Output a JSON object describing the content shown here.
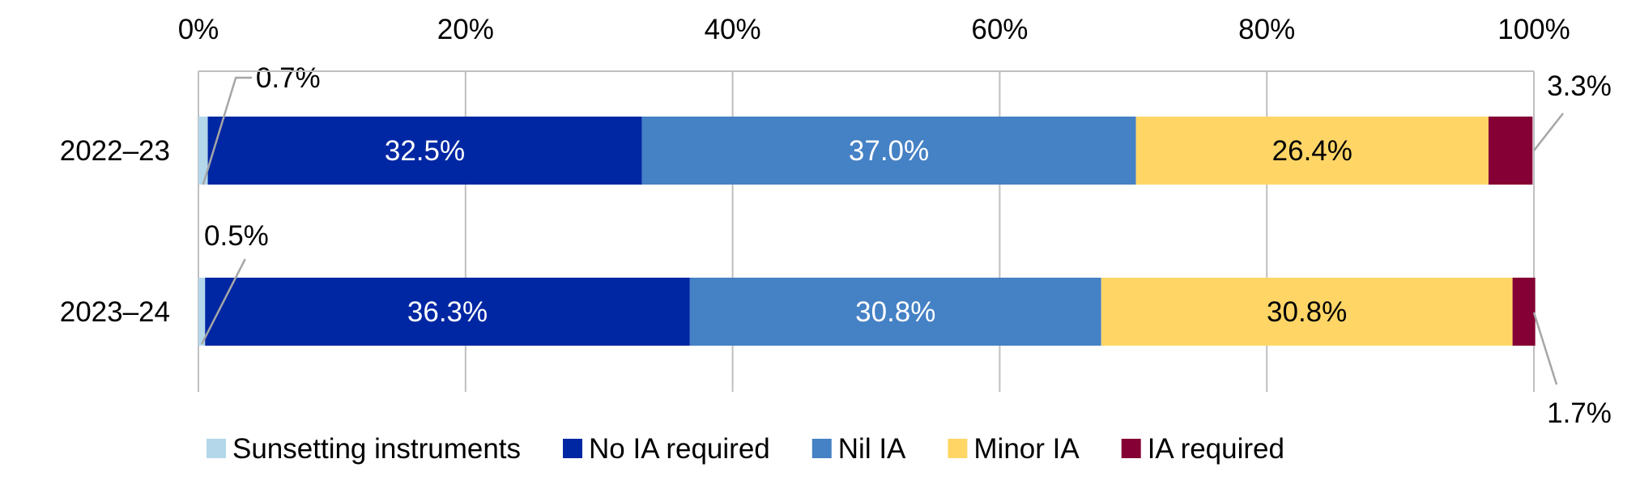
{
  "chart_data": {
    "type": "bar",
    "orientation": "horizontal",
    "stacked": true,
    "categories": [
      "2022–23",
      "2023–24"
    ],
    "series": [
      {
        "name": "Sunsetting instruments",
        "color": "#B4D7EA",
        "values": [
          0.7,
          0.5
        ],
        "labels": [
          "0.7%",
          "0.5%"
        ]
      },
      {
        "name": "No IA required",
        "color": "#0027A3",
        "values": [
          32.5,
          36.3
        ],
        "labels": [
          "32.5%",
          "36.3%"
        ]
      },
      {
        "name": "Nil IA",
        "color": "#4581C5",
        "values": [
          37.0,
          30.8
        ],
        "labels": [
          "37.0%",
          "30.8%"
        ]
      },
      {
        "name": "Minor IA",
        "color": "#FFD666",
        "values": [
          26.4,
          30.8
        ],
        "labels": [
          "26.4%",
          "30.8%"
        ]
      },
      {
        "name": "IA required",
        "color": "#850034",
        "values": [
          3.3,
          1.7
        ],
        "labels": [
          "3.3%",
          "1.7%"
        ]
      }
    ],
    "xlim": [
      0,
      100
    ],
    "x_ticks": [
      0,
      20,
      40,
      60,
      80,
      100
    ],
    "x_tick_labels": [
      "0%",
      "20%",
      "40%",
      "60%",
      "80%",
      "100%"
    ],
    "grid": true,
    "legend_position": "bottom",
    "title": "",
    "xlabel": "",
    "ylabel": ""
  }
}
